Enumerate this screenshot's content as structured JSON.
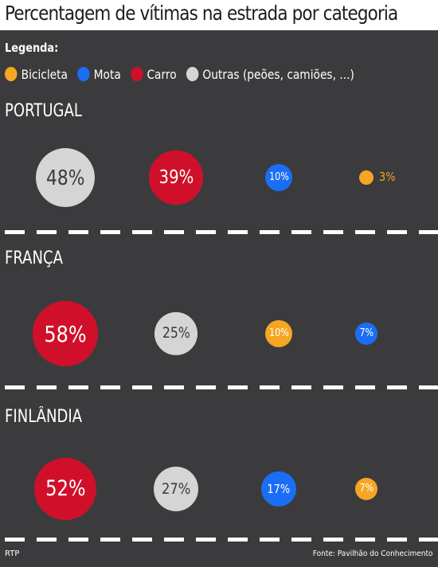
{
  "header": {
    "title": "Percentagem de vítimas na estrada por categoria"
  },
  "legend": {
    "label": "Legenda:",
    "items": [
      {
        "name": "Bicicleta",
        "color": "#f5a623"
      },
      {
        "name": "Mota",
        "color": "#1a6ef5"
      },
      {
        "name": "Carro",
        "color": "#d0102a"
      },
      {
        "name": "Outras (peões, camiões, ...)",
        "color": "#d5d5d5"
      }
    ]
  },
  "chart_data": {
    "type": "bubble",
    "title": "Percentagem de vítimas na estrada por categoria",
    "series_colors": {
      "Bicicleta": "#f5a623",
      "Mota": "#1a6ef5",
      "Carro": "#d0102a",
      "Outras (peões, camiões, ...)": "#d5d5d5"
    },
    "groups": [
      {
        "country": "PORTUGAL",
        "values": [
          {
            "category": "Outras (peões, camiões, ...)",
            "value": 48,
            "label": "48%"
          },
          {
            "category": "Carro",
            "value": 39,
            "label": "39%"
          },
          {
            "category": "Mota",
            "value": 10,
            "label": "10%"
          },
          {
            "category": "Bicicleta",
            "value": 3,
            "label": "3%"
          }
        ]
      },
      {
        "country": "FRANÇA",
        "values": [
          {
            "category": "Carro",
            "value": 58,
            "label": "58%"
          },
          {
            "category": "Outras (peões, camiões, ...)",
            "value": 25,
            "label": "25%"
          },
          {
            "category": "Bicicleta",
            "value": 10,
            "label": "10%"
          },
          {
            "category": "Mota",
            "value": 7,
            "label": "7%"
          }
        ]
      },
      {
        "country": "FINLÂNDIA",
        "values": [
          {
            "category": "Carro",
            "value": 52,
            "label": "52%"
          },
          {
            "category": "Outras (peões, camiões, ...)",
            "value": 27,
            "label": "27%"
          },
          {
            "category": "Mota",
            "value": 17,
            "label": "17%"
          },
          {
            "category": "Bicicleta",
            "value": 7,
            "label": "7%"
          }
        ]
      }
    ]
  },
  "footer": {
    "left": "RTP",
    "right": "Fonte: Pavilhão do Conhecimento"
  }
}
